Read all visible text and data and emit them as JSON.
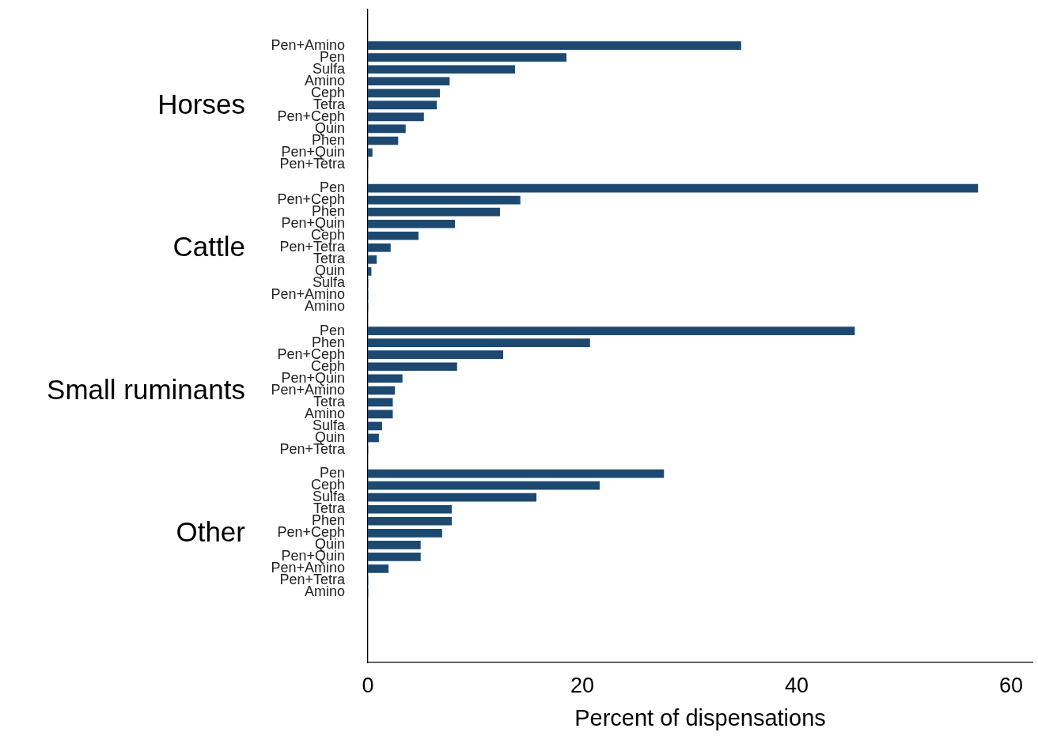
{
  "chart_data": {
    "type": "bar",
    "orientation": "horizontal",
    "xlabel": "Percent of dispensations",
    "annotations": [
      "Horses",
      "Cattle",
      "Small ruminants",
      "Other"
    ],
    "categories": [
      "Pen+Amino",
      "Pen",
      "Sulfa",
      "Amino",
      "Ceph",
      "Tetra",
      "Pen+Ceph",
      "Quin",
      "Phen",
      "Pen+Quin",
      "Pen+Tetra",
      null,
      "Pen",
      "Pen+Ceph",
      "Phen",
      "Pen+Quin",
      "Ceph",
      "Pen+Tetra",
      "Tetra",
      "Quin",
      "Sulfa",
      "Pen+Amino",
      "Amino",
      null,
      "Pen",
      "Phen",
      "Pen+Ceph",
      "Ceph",
      "Pen+Quin",
      "Pen+Amino",
      "Tetra",
      "Amino",
      "Sulfa",
      "Quin",
      "Pen+Tetra",
      null,
      "Pen",
      "Ceph",
      "Sulfa",
      "Tetra",
      "Phen",
      "Pen+Ceph",
      "Quin",
      "Pen+Quin",
      "Pen+Amino",
      "Pen+Tetra",
      "Amino"
    ],
    "values": [
      34.8,
      18.5,
      13.7,
      7.6,
      6.7,
      6.4,
      5.2,
      3.5,
      2.8,
      0.4,
      0,
      null,
      56.9,
      14.2,
      12.3,
      8.1,
      4.7,
      2.1,
      0.8,
      0.3,
      0,
      0,
      0,
      null,
      45.4,
      20.7,
      12.6,
      8.3,
      3.2,
      2.5,
      2.3,
      2.3,
      1.3,
      1.0,
      0,
      null,
      27.6,
      21.6,
      15.7,
      7.8,
      7.8,
      6.9,
      4.9,
      4.9,
      1.9,
      0,
      0
    ],
    "color": "#1d4971",
    "xlim": [
      0,
      62
    ],
    "xticks": [
      0,
      20,
      40,
      60
    ]
  }
}
